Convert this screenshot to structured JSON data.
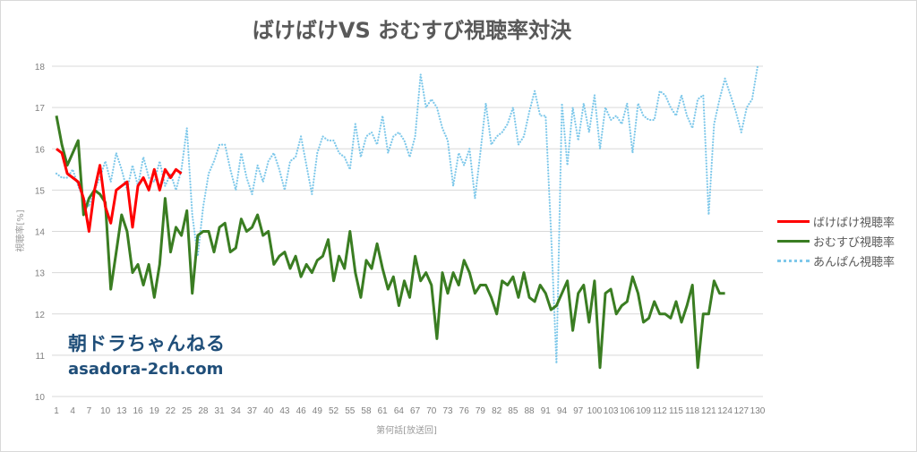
{
  "chart_data": {
    "type": "line",
    "title": "ばけばけVS おむすび視聴率対決",
    "xlabel": "第何話[放送回]",
    "ylabel": "視聴率[%]",
    "ylim": [
      10,
      18
    ],
    "yticks": [
      10,
      11,
      12,
      13,
      14,
      15,
      16,
      17,
      18
    ],
    "xlim": [
      1,
      130
    ],
    "xticks": [
      1,
      4,
      7,
      10,
      13,
      16,
      19,
      22,
      25,
      28,
      31,
      34,
      37,
      40,
      43,
      46,
      49,
      52,
      55,
      58,
      61,
      64,
      67,
      70,
      73,
      76,
      79,
      82,
      85,
      88,
      91,
      94,
      97,
      100,
      103,
      106,
      109,
      112,
      115,
      118,
      121,
      124,
      127,
      130
    ],
    "grid": true,
    "legend_position": "right",
    "series": [
      {
        "name": "ばけばけ視聴率",
        "color": "#ff0000",
        "style": "solid",
        "x_start": 1,
        "values": [
          16.0,
          15.9,
          15.4,
          15.3,
          15.2,
          14.8,
          14.0,
          15.0,
          15.6,
          14.6,
          14.2,
          15.0,
          15.1,
          15.2,
          14.1,
          15.1,
          15.3,
          15.0,
          15.5,
          15.0,
          15.5,
          15.3,
          15.5,
          15.4
        ]
      },
      {
        "name": "おむすび視聴率",
        "color": "#3a7d22",
        "style": "solid",
        "x_start": 1,
        "values": [
          16.8,
          16.1,
          15.6,
          15.9,
          16.2,
          14.4,
          14.8,
          15.0,
          14.9,
          14.7,
          12.6,
          13.5,
          14.4,
          14.0,
          13.0,
          13.2,
          12.7,
          13.2,
          12.4,
          13.2,
          14.8,
          13.5,
          14.1,
          13.9,
          14.5,
          12.5,
          13.9,
          14.0,
          14.0,
          13.5,
          14.1,
          14.2,
          13.5,
          13.6,
          14.3,
          14.0,
          14.1,
          14.4,
          13.9,
          14.0,
          13.2,
          13.4,
          13.5,
          13.1,
          13.4,
          12.9,
          13.2,
          13.0,
          13.3,
          13.4,
          13.8,
          12.8,
          13.4,
          13.1,
          14.0,
          13.0,
          12.4,
          13.3,
          13.1,
          13.7,
          13.1,
          12.6,
          12.9,
          12.2,
          12.8,
          12.4,
          13.4,
          12.8,
          13.0,
          12.7,
          11.4,
          13.0,
          12.5,
          13.0,
          12.7,
          13.3,
          13.0,
          12.5,
          12.7,
          12.7,
          12.4,
          12.0,
          12.8,
          12.7,
          12.9,
          12.4,
          13.0,
          12.4,
          12.3,
          12.7,
          12.5,
          12.1,
          12.2,
          12.5,
          12.8,
          11.6,
          12.5,
          12.7,
          11.8,
          12.8,
          10.7,
          12.5,
          12.6,
          12.0,
          12.2,
          12.3,
          12.9,
          12.5,
          11.8,
          11.9,
          12.3,
          12.0,
          12.0,
          11.9,
          12.3,
          11.8,
          12.2,
          12.7,
          10.7,
          12.0,
          12.0,
          12.8,
          12.5,
          12.5
        ]
      },
      {
        "name": "あんぱん視聴率",
        "color": "#7ec8ea",
        "style": "dotted",
        "x_start": 1,
        "values": [
          15.4,
          15.3,
          15.3,
          15.5,
          15.1,
          14.8,
          14.6,
          15.0,
          15.3,
          15.7,
          15.2,
          15.9,
          15.5,
          15.0,
          15.6,
          15.1,
          15.8,
          15.3,
          15.2,
          15.7,
          15.1,
          15.4,
          15.0,
          15.5,
          16.5,
          14.4,
          13.4,
          14.6,
          15.4,
          15.7,
          16.1,
          16.1,
          15.5,
          15.0,
          15.9,
          15.3,
          14.9,
          15.6,
          15.2,
          15.7,
          15.9,
          15.5,
          15.0,
          15.7,
          15.8,
          16.3,
          15.6,
          14.9,
          15.9,
          16.3,
          16.2,
          16.2,
          15.9,
          15.8,
          15.5,
          16.6,
          15.8,
          16.3,
          16.4,
          16.1,
          16.8,
          15.9,
          16.3,
          16.4,
          16.2,
          15.8,
          16.3,
          17.8,
          17.0,
          17.2,
          17.0,
          16.5,
          16.2,
          15.1,
          15.9,
          15.6,
          16.0,
          14.8,
          15.9,
          17.1,
          16.1,
          16.3,
          16.4,
          16.6,
          17.0,
          16.1,
          16.3,
          16.9,
          17.4,
          16.8,
          16.8,
          14.0,
          10.8,
          17.1,
          15.6,
          17.0,
          16.2,
          17.1,
          16.4,
          17.3,
          16.0,
          17.0,
          16.7,
          16.8,
          16.6,
          17.1,
          15.9,
          17.1,
          16.8,
          16.7,
          16.7,
          17.4,
          17.3,
          17.0,
          16.8,
          17.3,
          16.8,
          16.5,
          17.2,
          17.3,
          14.4,
          16.6,
          17.2,
          17.7,
          17.3,
          16.9,
          16.4,
          17.0,
          17.2,
          18.0
        ]
      }
    ],
    "annotations": [
      "朝ドラちゃんねる",
      "asadora-2ch.com"
    ]
  },
  "watermark": {
    "line1": "朝ドラちゃんねる",
    "line2": "asadora-2ch.com"
  }
}
